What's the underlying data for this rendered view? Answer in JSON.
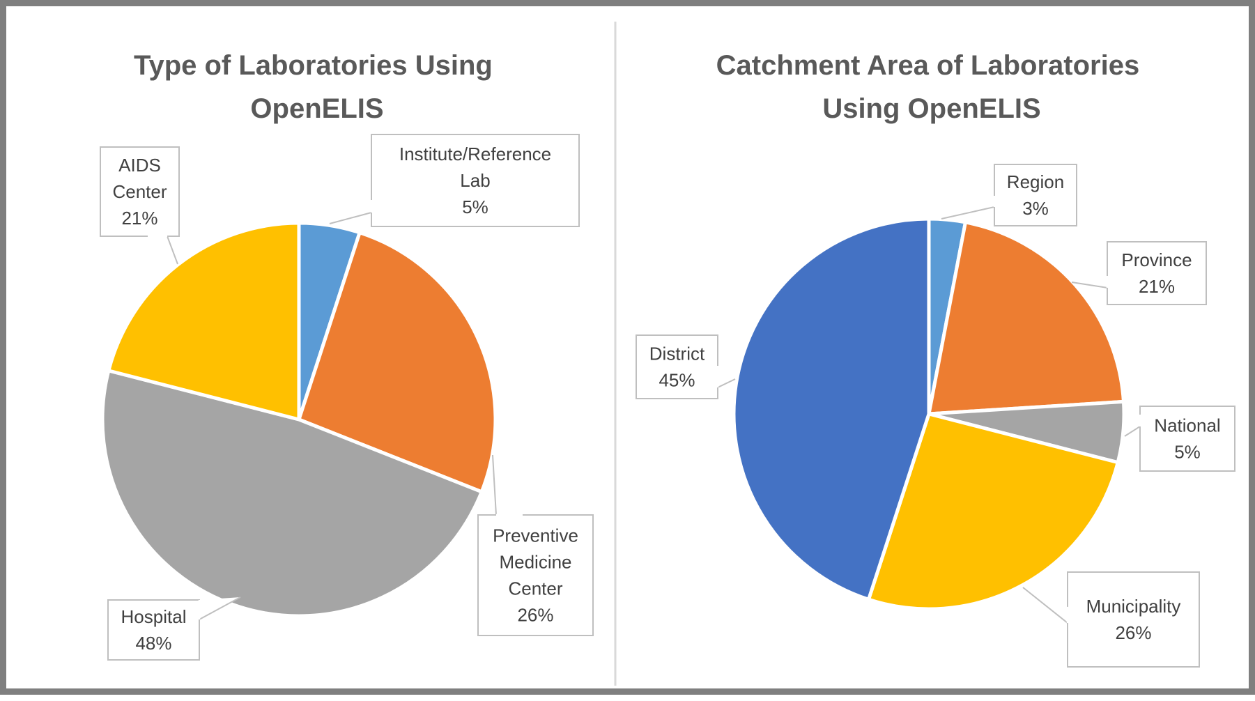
{
  "chart_data": [
    {
      "type": "pie",
      "title": "Type of Laboratories Using OpenELIS",
      "title_lines": [
        "Type of Laboratories Using",
        "OpenELIS"
      ],
      "start_angle_deg": 0,
      "direction": "clockwise",
      "legend": "none",
      "slices": [
        {
          "name": "Institute/Reference Lab",
          "label_lines": [
            "Institute/Reference",
            "Lab"
          ],
          "percent_label": "5%",
          "value": 5,
          "color": "#5b9bd5"
        },
        {
          "name": "Preventive Medicine Center",
          "label_lines": [
            "Preventive",
            "Medicine",
            "Center"
          ],
          "percent_label": "26%",
          "value": 26,
          "color": "#ed7d31"
        },
        {
          "name": "Hospital",
          "label_lines": [
            "Hospital"
          ],
          "percent_label": "48%",
          "value": 48,
          "color": "#a5a5a5"
        },
        {
          "name": "AIDS Center",
          "label_lines": [
            "AIDS",
            "Center"
          ],
          "percent_label": "21%",
          "value": 21,
          "color": "#ffc000"
        }
      ]
    },
    {
      "type": "pie",
      "title": "Catchment Area of Laboratories Using OpenELIS",
      "title_lines": [
        "Catchment Area of Laboratories",
        "Using OpenELIS"
      ],
      "start_angle_deg": 0,
      "direction": "clockwise",
      "legend": "none",
      "slices": [
        {
          "name": "Region",
          "label_lines": [
            "Region"
          ],
          "percent_label": "3%",
          "value": 3,
          "color": "#5b9bd5"
        },
        {
          "name": "Province",
          "label_lines": [
            "Province"
          ],
          "percent_label": "21%",
          "value": 21,
          "color": "#ed7d31"
        },
        {
          "name": "National",
          "label_lines": [
            "National"
          ],
          "percent_label": "5%",
          "value": 5,
          "color": "#a5a5a5"
        },
        {
          "name": "Municipality",
          "label_lines": [
            "Municipality"
          ],
          "percent_label": "26%",
          "value": 26,
          "color": "#ffc000"
        },
        {
          "name": "District",
          "label_lines": [
            "District"
          ],
          "percent_label": "45%",
          "value": 45,
          "color": "#4472c4"
        }
      ]
    }
  ]
}
